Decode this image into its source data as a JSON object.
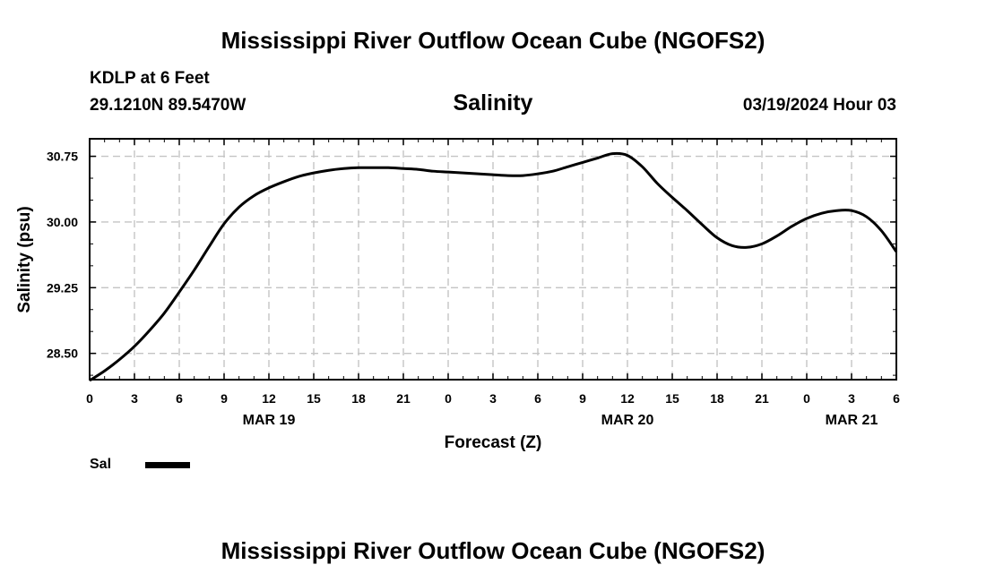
{
  "header": {
    "title": "Mississippi River Outflow Ocean Cube (NGOFS2)",
    "station": "KDLP at 6 Feet",
    "coords": "29.1210N  89.5470W",
    "subtitle": "Salinity",
    "datetime": "03/19/2024 Hour 03"
  },
  "footer": {
    "title": "Mississippi River Outflow Ocean Cube (NGOFS2)"
  },
  "legend": {
    "label": "Sal",
    "color": "#000000"
  },
  "chart_data": {
    "type": "line",
    "title": "Salinity",
    "xlabel": "Forecast (Z)",
    "ylabel": "Salinity (psu)",
    "x_unit": "forecast hour from 03/19/2024 00Z",
    "xlim": [
      0,
      54
    ],
    "ylim": [
      28.2,
      30.95
    ],
    "grid": true,
    "x_ticks": [
      {
        "x": 0,
        "label": "0"
      },
      {
        "x": 3,
        "label": "3"
      },
      {
        "x": 6,
        "label": "6"
      },
      {
        "x": 9,
        "label": "9"
      },
      {
        "x": 12,
        "label": "12"
      },
      {
        "x": 15,
        "label": "15"
      },
      {
        "x": 18,
        "label": "18"
      },
      {
        "x": 21,
        "label": "21"
      },
      {
        "x": 24,
        "label": "0"
      },
      {
        "x": 27,
        "label": "3"
      },
      {
        "x": 30,
        "label": "6"
      },
      {
        "x": 33,
        "label": "9"
      },
      {
        "x": 36,
        "label": "12"
      },
      {
        "x": 39,
        "label": "15"
      },
      {
        "x": 42,
        "label": "18"
      },
      {
        "x": 45,
        "label": "21"
      },
      {
        "x": 48,
        "label": "0"
      },
      {
        "x": 51,
        "label": "3"
      },
      {
        "x": 54,
        "label": "6"
      }
    ],
    "date_labels": [
      {
        "x": 12,
        "label": "MAR 19"
      },
      {
        "x": 36,
        "label": "MAR 20"
      },
      {
        "x": 51,
        "label": "MAR 21"
      }
    ],
    "y_ticks": [
      {
        "y": 28.5,
        "label": "28.50"
      },
      {
        "y": 29.25,
        "label": "29.25"
      },
      {
        "y": 30.0,
        "label": "30.00"
      },
      {
        "y": 30.75,
        "label": "30.75"
      }
    ],
    "series": [
      {
        "name": "Sal",
        "x": [
          0,
          1,
          2,
          3,
          4,
          5,
          6,
          7,
          8,
          9,
          10,
          11,
          12,
          13,
          14,
          15,
          16,
          17,
          18,
          19,
          20,
          21,
          22,
          23,
          24,
          25,
          26,
          27,
          28,
          29,
          30,
          31,
          32,
          33,
          34,
          35,
          36,
          37,
          38,
          39,
          40,
          41,
          42,
          43,
          44,
          45,
          46,
          47,
          48,
          49,
          50,
          51,
          52,
          53,
          54
        ],
        "values": [
          28.19,
          28.3,
          28.43,
          28.58,
          28.76,
          28.96,
          29.2,
          29.45,
          29.72,
          29.98,
          30.17,
          30.3,
          30.39,
          30.46,
          30.52,
          30.56,
          30.59,
          30.61,
          30.62,
          30.62,
          30.62,
          30.61,
          30.6,
          30.58,
          30.57,
          30.56,
          30.55,
          30.54,
          30.53,
          30.53,
          30.55,
          30.58,
          30.63,
          30.68,
          30.73,
          30.78,
          30.76,
          30.63,
          30.44,
          30.28,
          30.13,
          29.97,
          29.82,
          29.73,
          29.71,
          29.75,
          29.84,
          29.95,
          30.04,
          30.1,
          30.13,
          30.13,
          30.06,
          29.9,
          29.66
        ]
      }
    ]
  }
}
